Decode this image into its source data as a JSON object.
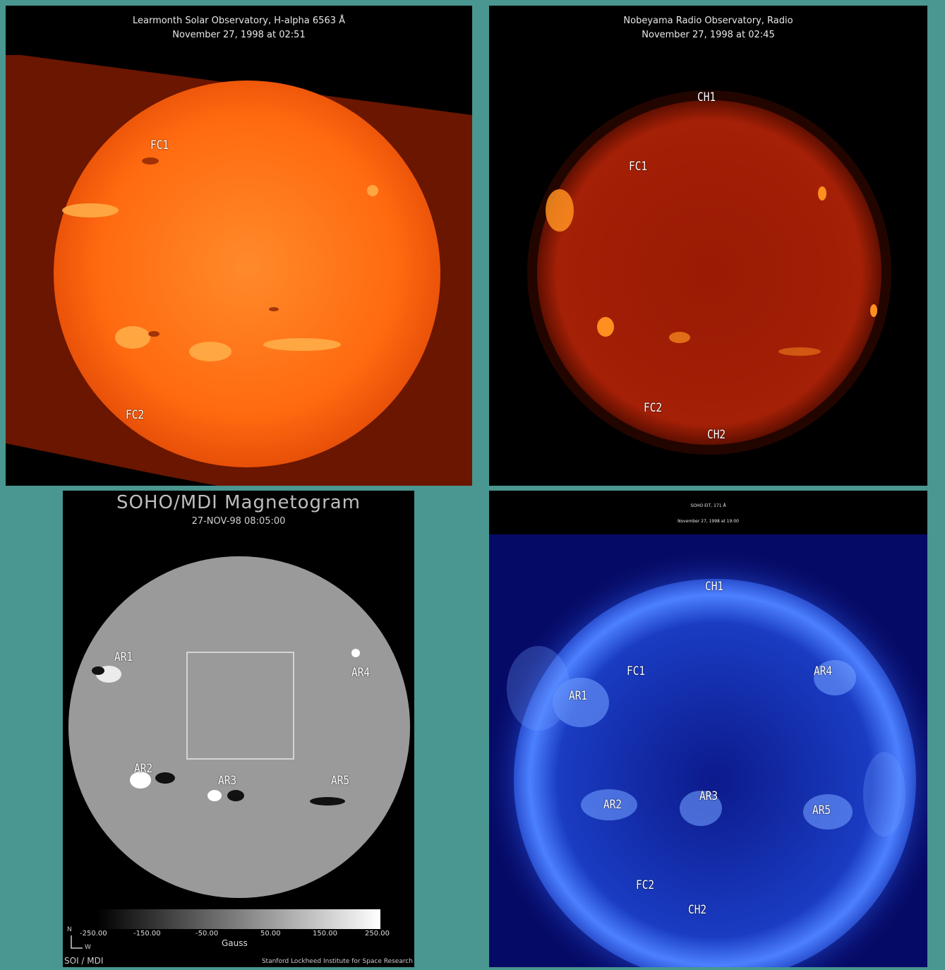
{
  "halpha": {
    "title_line1": "Learmonth Solar Observatory, H-alpha 6563 Å",
    "title_line2": "November 27, 1998 at 02:51",
    "labels": {
      "fc1": "FC1",
      "fc2": "FC2"
    }
  },
  "radio": {
    "title_line1": "Nobeyama Radio Observatory, Radio",
    "title_line2": "November 27, 1998 at 02:45",
    "labels": {
      "ch1": "CH1",
      "fc1": "FC1",
      "fc2": "FC2",
      "ch2": "CH2"
    }
  },
  "mdi": {
    "title": "SOHO/MDI Magnetogram",
    "date": "27-NOV-98  08:05:00",
    "labels": {
      "ar1": "AR1",
      "ar2": "AR2",
      "ar3": "AR3",
      "ar4": "AR4",
      "ar5": "AR5"
    },
    "colorbar": {
      "ticks": [
        "-250.00",
        "-150.00",
        "-50.00",
        "50.00",
        "150.00",
        "250.00"
      ],
      "unit": "Gauss"
    },
    "footer_left": "SOI / MDI",
    "footer_right": "Stanford Lockheed Institute for Space Research",
    "compass_n": "N",
    "compass_w": "W"
  },
  "eit": {
    "title_line1": "SOHO EIT, 171 Å",
    "title_line2": "November 27, 1998 at 19:00",
    "labels": {
      "ch1": "CH1",
      "fc1": "FC1",
      "ar4": "AR4",
      "ar1": "AR1",
      "ar2": "AR2",
      "ar3": "AR3",
      "ar5": "AR5",
      "fc2": "FC2",
      "ch2": "CH2"
    }
  }
}
